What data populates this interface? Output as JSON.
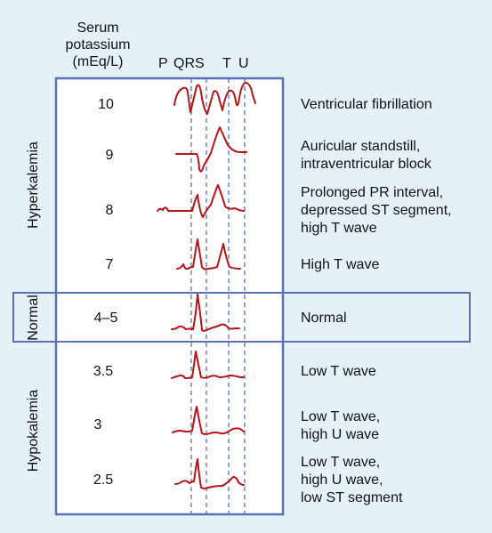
{
  "header": {
    "serum_line1": "Serum",
    "serum_line2": "potassium",
    "serum_line3": "(mEq/L)",
    "wave_labels": {
      "p": "P",
      "qrs": "QRS",
      "t": "T",
      "u": "U"
    }
  },
  "groups": {
    "hyperkalemia": "Hyperkalemia",
    "normal": "Normal",
    "hypokalemia": "Hypokalemia"
  },
  "rows": [
    {
      "level": "10",
      "effect_lines": [
        "Ventricular fibrillation"
      ]
    },
    {
      "level": "9",
      "effect_lines": [
        "Auricular standstill,",
        "intraventricular block"
      ]
    },
    {
      "level": "8",
      "effect_lines": [
        "Prolonged PR interval,",
        "depressed ST segment,",
        "high T wave"
      ]
    },
    {
      "level": "7",
      "effect_lines": [
        "High T wave"
      ]
    },
    {
      "level": "4–5",
      "effect_lines": [
        "Normal"
      ]
    },
    {
      "level": "3.5",
      "effect_lines": [
        "Low T wave"
      ]
    },
    {
      "level": "3",
      "effect_lines": [
        "Low T wave,",
        "high U wave"
      ]
    },
    {
      "level": "2.5",
      "effect_lines": [
        "Low T wave,",
        "high U wave,",
        "low ST segment"
      ]
    }
  ],
  "colors": {
    "background": "#e4f1f6",
    "frame": "#5a70b8",
    "trace": "#b3151b",
    "guide": "#5a70b8",
    "white_panel": "#ffffff"
  }
}
